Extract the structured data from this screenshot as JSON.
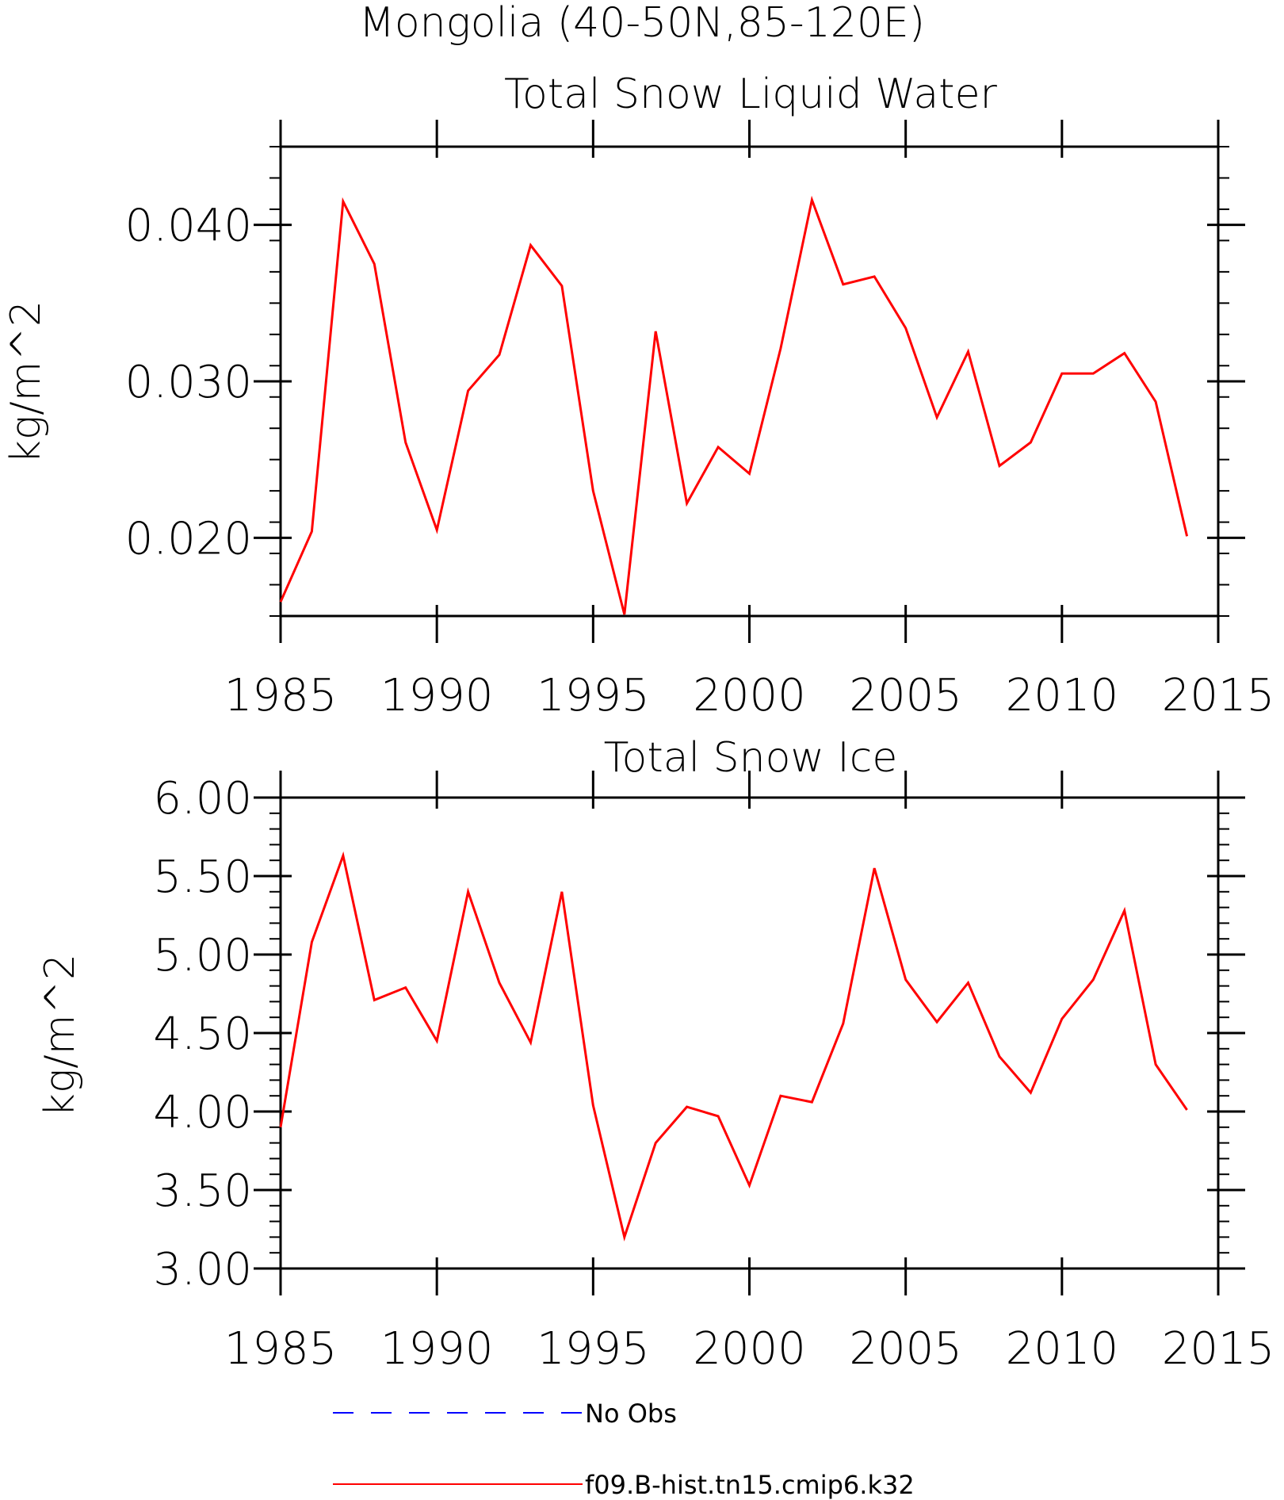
{
  "figure": {
    "suptitle": "Mongolia (40-50N,85-120E)"
  },
  "chart_data": [
    {
      "type": "line",
      "title": "Total Snow Liquid Water",
      "xlabel": "",
      "ylabel": "kg/m^2",
      "xlim": [
        1985,
        2015
      ],
      "ylim": [
        0.015,
        0.045
      ],
      "xticks": [
        "1985",
        "1990",
        "1995",
        "2000",
        "2005",
        "2010",
        "2015"
      ],
      "xtick_values": [
        1985,
        1990,
        1995,
        2000,
        2005,
        2010,
        2015
      ],
      "yticks": [
        "0.020",
        "0.030",
        "0.040"
      ],
      "ytick_values": [
        0.02,
        0.03,
        0.04
      ],
      "yminor_step": 0.002,
      "grid": false,
      "x": [
        1985,
        1986,
        1987,
        1988,
        1989,
        1990,
        1991,
        1992,
        1993,
        1994,
        1995,
        1996,
        1997,
        1998,
        1999,
        2000,
        2001,
        2002,
        2003,
        2004,
        2005,
        2006,
        2007,
        2008,
        2009,
        2010,
        2011,
        2012,
        2013,
        2014
      ],
      "series": [
        {
          "name": "f09.B-hist.tn15.cmip6.k32",
          "color": "#ff0000",
          "values": [
            0.0159,
            0.0204,
            0.0415,
            0.0375,
            0.0261,
            0.0205,
            0.0294,
            0.0317,
            0.0387,
            0.0361,
            0.023,
            0.0151,
            0.0332,
            0.0222,
            0.0258,
            0.0241,
            0.0321,
            0.0416,
            0.0362,
            0.0367,
            0.0334,
            0.0277,
            0.0319,
            0.0246,
            0.0261,
            0.0305,
            0.0305,
            0.0318,
            0.0287,
            0.0201
          ]
        }
      ]
    },
    {
      "type": "line",
      "title": "Total Snow Ice",
      "xlabel": "",
      "ylabel": "kg/m^2",
      "xlim": [
        1985,
        2015
      ],
      "ylim": [
        3.0,
        6.0
      ],
      "xticks": [
        "1985",
        "1990",
        "1995",
        "2000",
        "2005",
        "2010",
        "2015"
      ],
      "xtick_values": [
        1985,
        1990,
        1995,
        2000,
        2005,
        2010,
        2015
      ],
      "yticks": [
        "3.00",
        "3.50",
        "4.00",
        "4.50",
        "5.00",
        "5.50",
        "6.00"
      ],
      "ytick_values": [
        3.0,
        3.5,
        4.0,
        4.5,
        5.0,
        5.5,
        6.0
      ],
      "yminor_step": 0.1,
      "grid": false,
      "x": [
        1985,
        1986,
        1987,
        1988,
        1989,
        1990,
        1991,
        1992,
        1993,
        1994,
        1995,
        1996,
        1997,
        1998,
        1999,
        2000,
        2001,
        2002,
        2003,
        2004,
        2005,
        2006,
        2007,
        2008,
        2009,
        2010,
        2011,
        2012,
        2013,
        2014
      ],
      "series": [
        {
          "name": "f09.B-hist.tn15.cmip6.k32",
          "color": "#ff0000",
          "values": [
            3.9,
            5.08,
            5.63,
            4.71,
            4.79,
            4.45,
            5.4,
            4.82,
            4.44,
            5.4,
            4.04,
            3.2,
            3.8,
            4.03,
            3.97,
            3.53,
            4.1,
            4.06,
            4.56,
            5.55,
            4.84,
            4.57,
            4.82,
            4.35,
            4.12,
            4.59,
            4.84,
            5.28,
            4.3,
            4.01
          ]
        }
      ]
    }
  ],
  "legend": {
    "placement": "bottom",
    "items": [
      {
        "label": "No Obs",
        "color": "#0000ff",
        "style": "dashed"
      },
      {
        "label": "f09.B-hist.tn15.cmip6.k32",
        "color": "#ff0000",
        "style": "solid"
      }
    ]
  }
}
